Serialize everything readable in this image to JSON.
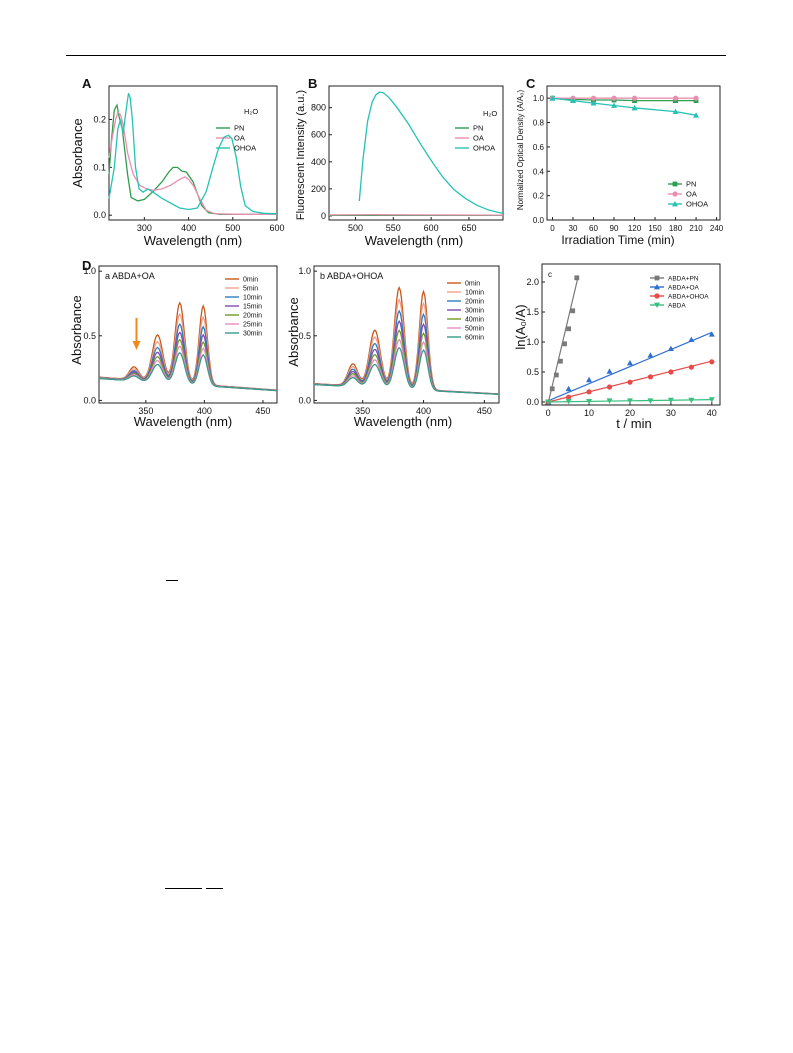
{
  "panels": [
    {
      "id": "A",
      "letter": "A",
      "type": "line",
      "xlabel": "Wavelength (nm)",
      "ylabel": "Absorbance",
      "xlim": [
        220,
        600
      ],
      "ylim": [
        -0.01,
        0.27
      ],
      "xticks": [
        300,
        400,
        500,
        600
      ],
      "yticks": [
        0.0,
        0.1,
        0.2
      ],
      "ytick_labels": [
        "0.0",
        "0.1",
        "0.2"
      ],
      "legend_title": "H₂O",
      "series": [
        {
          "name": "PN",
          "color": "#2e9e4f",
          "points": [
            [
              220,
              0.085
            ],
            [
              225,
              0.15
            ],
            [
              232,
              0.22
            ],
            [
              238,
              0.23
            ],
            [
              243,
              0.205
            ],
            [
              250,
              0.18
            ],
            [
              255,
              0.14
            ],
            [
              262,
              0.085
            ],
            [
              270,
              0.037
            ],
            [
              285,
              0.03
            ],
            [
              300,
              0.033
            ],
            [
              320,
              0.05
            ],
            [
              340,
              0.07
            ],
            [
              355,
              0.09
            ],
            [
              365,
              0.1
            ],
            [
              375,
              0.1
            ],
            [
              385,
              0.092
            ],
            [
              395,
              0.09
            ],
            [
              410,
              0.07
            ],
            [
              420,
              0.045
            ],
            [
              430,
              0.02
            ],
            [
              445,
              0.005
            ],
            [
              470,
              0.002
            ],
            [
              530,
              0.002
            ],
            [
              600,
              0.002
            ]
          ]
        },
        {
          "name": "OA",
          "color": "#e88fb0",
          "points": [
            [
              220,
              0.12
            ],
            [
              228,
              0.165
            ],
            [
              235,
              0.2
            ],
            [
              240,
              0.215
            ],
            [
              246,
              0.21
            ],
            [
              252,
              0.19
            ],
            [
              262,
              0.13
            ],
            [
              275,
              0.085
            ],
            [
              290,
              0.062
            ],
            [
              305,
              0.055
            ],
            [
              320,
              0.052
            ],
            [
              340,
              0.055
            ],
            [
              360,
              0.063
            ],
            [
              380,
              0.075
            ],
            [
              392,
              0.08
            ],
            [
              400,
              0.075
            ],
            [
              412,
              0.06
            ],
            [
              425,
              0.035
            ],
            [
              440,
              0.01
            ],
            [
              460,
              0.003
            ],
            [
              520,
              0.002
            ],
            [
              600,
              0.002
            ]
          ]
        },
        {
          "name": "OHOA",
          "color": "#26c2b5",
          "points": [
            [
              220,
              0.035
            ],
            [
              232,
              0.1
            ],
            [
              240,
              0.18
            ],
            [
              246,
              0.2
            ],
            [
              252,
              0.17
            ],
            [
              258,
              0.215
            ],
            [
              264,
              0.255
            ],
            [
              268,
              0.245
            ],
            [
              273,
              0.2
            ],
            [
              280,
              0.1
            ],
            [
              288,
              0.055
            ],
            [
              297,
              0.048
            ],
            [
              308,
              0.055
            ],
            [
              320,
              0.048
            ],
            [
              340,
              0.035
            ],
            [
              360,
              0.025
            ],
            [
              380,
              0.015
            ],
            [
              400,
              0.012
            ],
            [
              420,
              0.015
            ],
            [
              440,
              0.05
            ],
            [
              455,
              0.1
            ],
            [
              468,
              0.14
            ],
            [
              480,
              0.163
            ],
            [
              490,
              0.167
            ],
            [
              498,
              0.16
            ],
            [
              508,
              0.12
            ],
            [
              518,
              0.06
            ],
            [
              528,
              0.02
            ],
            [
              545,
              0.008
            ],
            [
              570,
              0.004
            ],
            [
              600,
              0.003
            ]
          ]
        }
      ]
    },
    {
      "id": "B",
      "letter": "B",
      "type": "line",
      "xlabel": "Wavelength (nm)",
      "ylabel": "Fluorescent Intensity (a.u.)",
      "xlim": [
        465,
        695
      ],
      "ylim": [
        -30,
        960
      ],
      "xticks": [
        500,
        550,
        600,
        650
      ],
      "yticks": [
        0,
        200,
        400,
        600,
        800
      ],
      "ytick_labels": [
        "0",
        "200",
        "400",
        "600",
        "800"
      ],
      "legend_title": "H₂O",
      "series": [
        {
          "name": "PN",
          "color": "#2e9e4f",
          "points": [
            [
              465,
              4
            ],
            [
              695,
              4
            ]
          ]
        },
        {
          "name": "OA",
          "color": "#e88fb0",
          "points": [
            [
              465,
              8
            ],
            [
              520,
              10
            ],
            [
              580,
              8
            ],
            [
              695,
              6
            ]
          ]
        },
        {
          "name": "OHOA",
          "color": "#26c2b5",
          "points": [
            [
              505,
              110
            ],
            [
              510,
              420
            ],
            [
              516,
              700
            ],
            [
              522,
              840
            ],
            [
              527,
              895
            ],
            [
              532,
              915
            ],
            [
              537,
              910
            ],
            [
              545,
              870
            ],
            [
              555,
              800
            ],
            [
              570,
              680
            ],
            [
              585,
              540
            ],
            [
              600,
              410
            ],
            [
              615,
              290
            ],
            [
              630,
              195
            ],
            [
              645,
              130
            ],
            [
              660,
              80
            ],
            [
              675,
              45
            ],
            [
              690,
              25
            ],
            [
              695,
              20
            ]
          ]
        }
      ]
    },
    {
      "id": "C",
      "letter": "C",
      "type": "line",
      "xlabel": "Irradiation Time (min)",
      "ylabel": "Normalized Optical Density (A/A₀)",
      "xlim": [
        -8,
        245
      ],
      "ylim": [
        0,
        1.1
      ],
      "xticks": [
        0,
        30,
        60,
        90,
        120,
        150,
        180,
        210,
        240
      ],
      "yticks": [
        0.0,
        0.2,
        0.4,
        0.6,
        0.8,
        1.0
      ],
      "ytick_labels": [
        "0.0",
        "0.2",
        "0.4",
        "0.6",
        "0.8",
        "1.0"
      ],
      "legend_title": "",
      "series": [
        {
          "name": "PN",
          "color": "#2e9e4f",
          "marker": "square",
          "points": [
            [
              0,
              1.0
            ],
            [
              30,
              0.99
            ],
            [
              60,
              0.985
            ],
            [
              90,
              0.985
            ],
            [
              120,
              0.98
            ],
            [
              180,
              0.98
            ],
            [
              210,
              0.98
            ]
          ]
        },
        {
          "name": "OA",
          "color": "#e88fb0",
          "marker": "circle",
          "points": [
            [
              0,
              1.0
            ],
            [
              30,
              1.0
            ],
            [
              60,
              1.0
            ],
            [
              90,
              1.0
            ],
            [
              120,
              1.0
            ],
            [
              180,
              1.0
            ],
            [
              210,
              1.0
            ]
          ]
        },
        {
          "name": "OHOA",
          "color": "#26c2b5",
          "marker": "triangle",
          "points": [
            [
              0,
              1.0
            ],
            [
              30,
              0.98
            ],
            [
              60,
              0.96
            ],
            [
              90,
              0.94
            ],
            [
              120,
              0.92
            ],
            [
              180,
              0.89
            ],
            [
              210,
              0.86
            ]
          ]
        }
      ]
    },
    {
      "id": "Da",
      "letter": "D",
      "sublabel": "a  ABDA+OA",
      "type": "line",
      "xlabel": "Wavelength (nm)",
      "ylabel": "Absorbance",
      "xlim": [
        310,
        462
      ],
      "ylim": [
        -0.02,
        1.04
      ],
      "xticks": [
        350,
        400,
        450
      ],
      "yticks": [
        0.0,
        0.5,
        1.0
      ],
      "ytick_labels": [
        "0.0",
        "0.5",
        "1.0"
      ],
      "legend_title": "",
      "arrow": {
        "x": 342,
        "color": "#ef8a16"
      },
      "series": [
        {
          "name": "0min",
          "color": "#c8591c",
          "peak_scale": 1.0
        },
        {
          "name": "5min",
          "color": "#f2a18e",
          "peak_scale": 0.86
        },
        {
          "name": "10min",
          "color": "#2f7ebd",
          "peak_scale": 0.74
        },
        {
          "name": "15min",
          "color": "#7e4bb3",
          "peak_scale": 0.64
        },
        {
          "name": "20min",
          "color": "#6f9a2b",
          "peak_scale": 0.55
        },
        {
          "name": "25min",
          "color": "#e48bc0",
          "peak_scale": 0.47
        },
        {
          "name": "30min",
          "color": "#3a9a8a",
          "peak_scale": 0.39
        }
      ],
      "spectrum": {
        "baseline_start": 0.18,
        "baseline_end": 0.08,
        "peaks": [
          [
            340,
            0.1,
            4
          ],
          [
            360,
            0.36,
            4.5
          ],
          [
            379,
            0.62,
            4
          ],
          [
            399,
            0.61,
            3.5
          ]
        ]
      }
    },
    {
      "id": "Db",
      "letter": "",
      "sublabel": "b  ABDA+OHOA",
      "type": "line",
      "xlabel": "Wavelength (nm)",
      "ylabel": "Absorbance",
      "xlim": [
        310,
        462
      ],
      "ylim": [
        -0.02,
        1.04
      ],
      "xticks": [
        350,
        400,
        450
      ],
      "yticks": [
        0.0,
        0.5,
        1.0
      ],
      "ytick_labels": [
        "0.0",
        "0.5",
        "1.0"
      ],
      "legend_title": "",
      "series": [
        {
          "name": "0min",
          "color": "#c8591c",
          "peak_scale": 1.0
        },
        {
          "name": "10min",
          "color": "#f2a18e",
          "peak_scale": 0.88
        },
        {
          "name": "20min",
          "color": "#2f7ebd",
          "peak_scale": 0.77
        },
        {
          "name": "30min",
          "color": "#7e4bb3",
          "peak_scale": 0.67
        },
        {
          "name": "40min",
          "color": "#6f9a2b",
          "peak_scale": 0.58
        },
        {
          "name": "50min",
          "color": "#e48bc0",
          "peak_scale": 0.49
        },
        {
          "name": "60min",
          "color": "#3a9a8a",
          "peak_scale": 0.41
        }
      ],
      "spectrum": {
        "baseline_start": 0.13,
        "baseline_end": 0.05,
        "peaks": [
          [
            342,
            0.17,
            4
          ],
          [
            360,
            0.44,
            4.5
          ],
          [
            380,
            0.78,
            4
          ],
          [
            400,
            0.76,
            3.5
          ]
        ]
      }
    },
    {
      "id": "Dc",
      "letter": "",
      "sublabel": "c",
      "type": "scatter",
      "xlabel": "t / min",
      "ylabel": "ln(A₀/A)",
      "xlim": [
        -1.5,
        42
      ],
      "ylim": [
        -0.05,
        2.3
      ],
      "xticks": [
        0,
        10,
        20,
        30,
        40
      ],
      "yticks": [
        0.0,
        0.5,
        1.0,
        1.5,
        2.0
      ],
      "ytick_labels": [
        "0.0",
        "0.5",
        "1.0",
        "1.5",
        "2.0"
      ],
      "legend_title": "",
      "series": [
        {
          "name": "ABDA+PN",
          "color": "#7a7a7a",
          "marker": "square",
          "points": [
            [
              0,
              0
            ],
            [
              1,
              0.22
            ],
            [
              2,
              0.45
            ],
            [
              3,
              0.68
            ],
            [
              4,
              0.97
            ],
            [
              5,
              1.22
            ],
            [
              6,
              1.52
            ],
            [
              7,
              2.07
            ]
          ],
          "fit": [
            [
              0,
              -0.02
            ],
            [
              7.3,
              2.08
            ]
          ]
        },
        {
          "name": "ABDA+OA",
          "color": "#2e6fd2",
          "marker": "triangle",
          "points": [
            [
              0,
              0
            ],
            [
              5,
              0.22
            ],
            [
              10,
              0.37
            ],
            [
              15,
              0.51
            ],
            [
              20,
              0.65
            ],
            [
              25,
              0.78
            ],
            [
              30,
              0.89
            ],
            [
              35,
              1.04
            ],
            [
              40,
              1.13
            ]
          ],
          "fit": [
            [
              0,
              0.02
            ],
            [
              40,
              1.16
            ]
          ]
        },
        {
          "name": "ABDA+OHOA",
          "color": "#e84a4a",
          "marker": "circle",
          "points": [
            [
              0,
              0
            ],
            [
              5,
              0.08
            ],
            [
              10,
              0.17
            ],
            [
              15,
              0.25
            ],
            [
              20,
              0.33
            ],
            [
              25,
              0.42
            ],
            [
              30,
              0.5
            ],
            [
              35,
              0.58
            ],
            [
              40,
              0.67
            ]
          ],
          "fit": [
            [
              0,
              0
            ],
            [
              40,
              0.68
            ]
          ]
        },
        {
          "name": "ABDA",
          "color": "#3bbf80",
          "marker": "triangle-down",
          "points": [
            [
              0,
              0
            ],
            [
              5,
              0.01
            ],
            [
              10,
              0.01
            ],
            [
              15,
              0.02
            ],
            [
              20,
              0.02
            ],
            [
              25,
              0.02
            ],
            [
              30,
              0.03
            ],
            [
              35,
              0.03
            ],
            [
              40,
              0.04
            ]
          ],
          "fit": [
            [
              0,
              0
            ],
            [
              40,
              0.04
            ]
          ]
        }
      ]
    }
  ]
}
